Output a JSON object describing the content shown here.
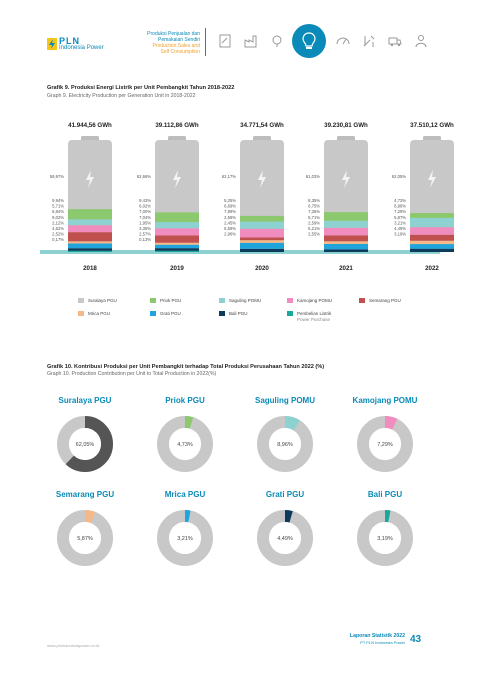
{
  "header": {
    "brand": "PLN",
    "brand_sub": "Indonesia Power",
    "section_line1": "Produksi Penjualan dan",
    "section_line2": "Pemakaian Sendiri",
    "section_line3": "Production Sales and",
    "section_line4": "Self Consumption"
  },
  "chart1": {
    "title": "Grafik 9. Produksi Energi Listrik per Unit Pembangkit Tahun 2018-2022",
    "subtitle": "Graph 9. Electricity Production per Generation Unit in 2018-2022"
  },
  "chart2": {
    "title": "Grafik 10. Kontribusi Produksi per Unit Pembangkit terhadap Total Produksi Perusahaan Tahun 2022 (%)",
    "subtitle": "Graph 10. Production Contribution per Unit to Total Production in 2022(%)"
  },
  "chart_data": [
    {
      "type": "bar",
      "title": "Grafik 9. Produksi Energi Listrik per Unit Pembangkit Tahun 2018-2022",
      "categories": [
        "2018",
        "2019",
        "2020",
        "2021",
        "2022"
      ],
      "totals": [
        "41.944,56 GWh",
        "39.112,86 GWh",
        "34.771,54 GWh",
        "39.230,81 GWh",
        "37.510,12 GWh"
      ],
      "series": [
        {
          "name": "Suralaya PGU",
          "color": "#c8c8c8",
          "labels": [
            "59,97%",
            "62,66%",
            "62,17%",
            "61,03%",
            "62,05%"
          ]
        },
        {
          "name": "Priok PGU",
          "color": "#8cc86e",
          "labels": [
            "9,94%",
            "9,43%",
            "5,25%",
            "8,35%",
            "4,73%"
          ]
        },
        {
          "name": "Saguling POMU",
          "color": "#8ed1d1",
          "labels": [
            "5,71%",
            "6,02%",
            "6,69%",
            "6,75%",
            "8,96%"
          ]
        },
        {
          "name": "Kamojang POMU",
          "color": "#f08cbe",
          "labels": [
            "6,84%",
            "7,00%",
            "7,99%",
            "7,36%",
            "7,29%"
          ]
        },
        {
          "name": "Semarang PGU",
          "color": "#c0504d",
          "labels": [
            "9,02%",
            "7,04%",
            "2,59%",
            "5,71%",
            "5,87%"
          ]
        },
        {
          "name": "Mrica PGU",
          "color": "#f5b888",
          "labels": [
            "2,12%",
            "1,95%",
            "2,45%",
            "2,59%",
            "3,21%"
          ]
        },
        {
          "name": "Grati PGU",
          "color": "#1fa5dc",
          "labels": [
            "4,62%",
            "3,35%",
            "5,58%",
            "5,21%",
            "4,49%"
          ]
        },
        {
          "name": "Bali PGU",
          "color": "#0c3c5c",
          "labels": [
            "2,52%",
            "2,57%",
            "2,96%",
            "2,55%",
            "3,19%"
          ]
        },
        {
          "name": "Pembelian Listrik",
          "color": "#1aa89c",
          "labels": [
            "0,17%",
            "0,13%",
            "",
            "",
            ""
          ]
        }
      ],
      "legend_extra": "Power Purchase"
    },
    {
      "type": "pie",
      "title": "Grafik 10. Kontribusi Produksi per Unit Pembangkit terhadap Total Produksi Perusahaan Tahun 2022 (%)",
      "slices": [
        {
          "name": "Suralaya PGU",
          "value": 62.05,
          "label": "62,05%",
          "color": "#555555"
        },
        {
          "name": "Priok PGU",
          "value": 4.73,
          "label": "4,73%",
          "color": "#8cc86e"
        },
        {
          "name": "Saguling POMU",
          "value": 8.96,
          "label": "8,96%",
          "color": "#8ed1d1"
        },
        {
          "name": "Kamojang POMU",
          "value": 7.29,
          "label": "7,29%",
          "color": "#f08cbe"
        },
        {
          "name": "Semarang PGU",
          "value": 5.87,
          "label": "5,87%",
          "color": "#f5b888"
        },
        {
          "name": "Mrica PGU",
          "value": 3.21,
          "label": "3,21%",
          "color": "#1fa5dc"
        },
        {
          "name": "Grati PGU",
          "value": 4.49,
          "label": "4,49%",
          "color": "#0c3c5c"
        },
        {
          "name": "Bali PGU",
          "value": 3.19,
          "label": "3,19%",
          "color": "#1aa89c"
        }
      ]
    }
  ],
  "footer": {
    "url": "www.plnindonesiapower.co.id",
    "report_title": "Laporan Statistik 2022",
    "report_sub": "PT PLN Indonesia Power",
    "page": "43"
  }
}
